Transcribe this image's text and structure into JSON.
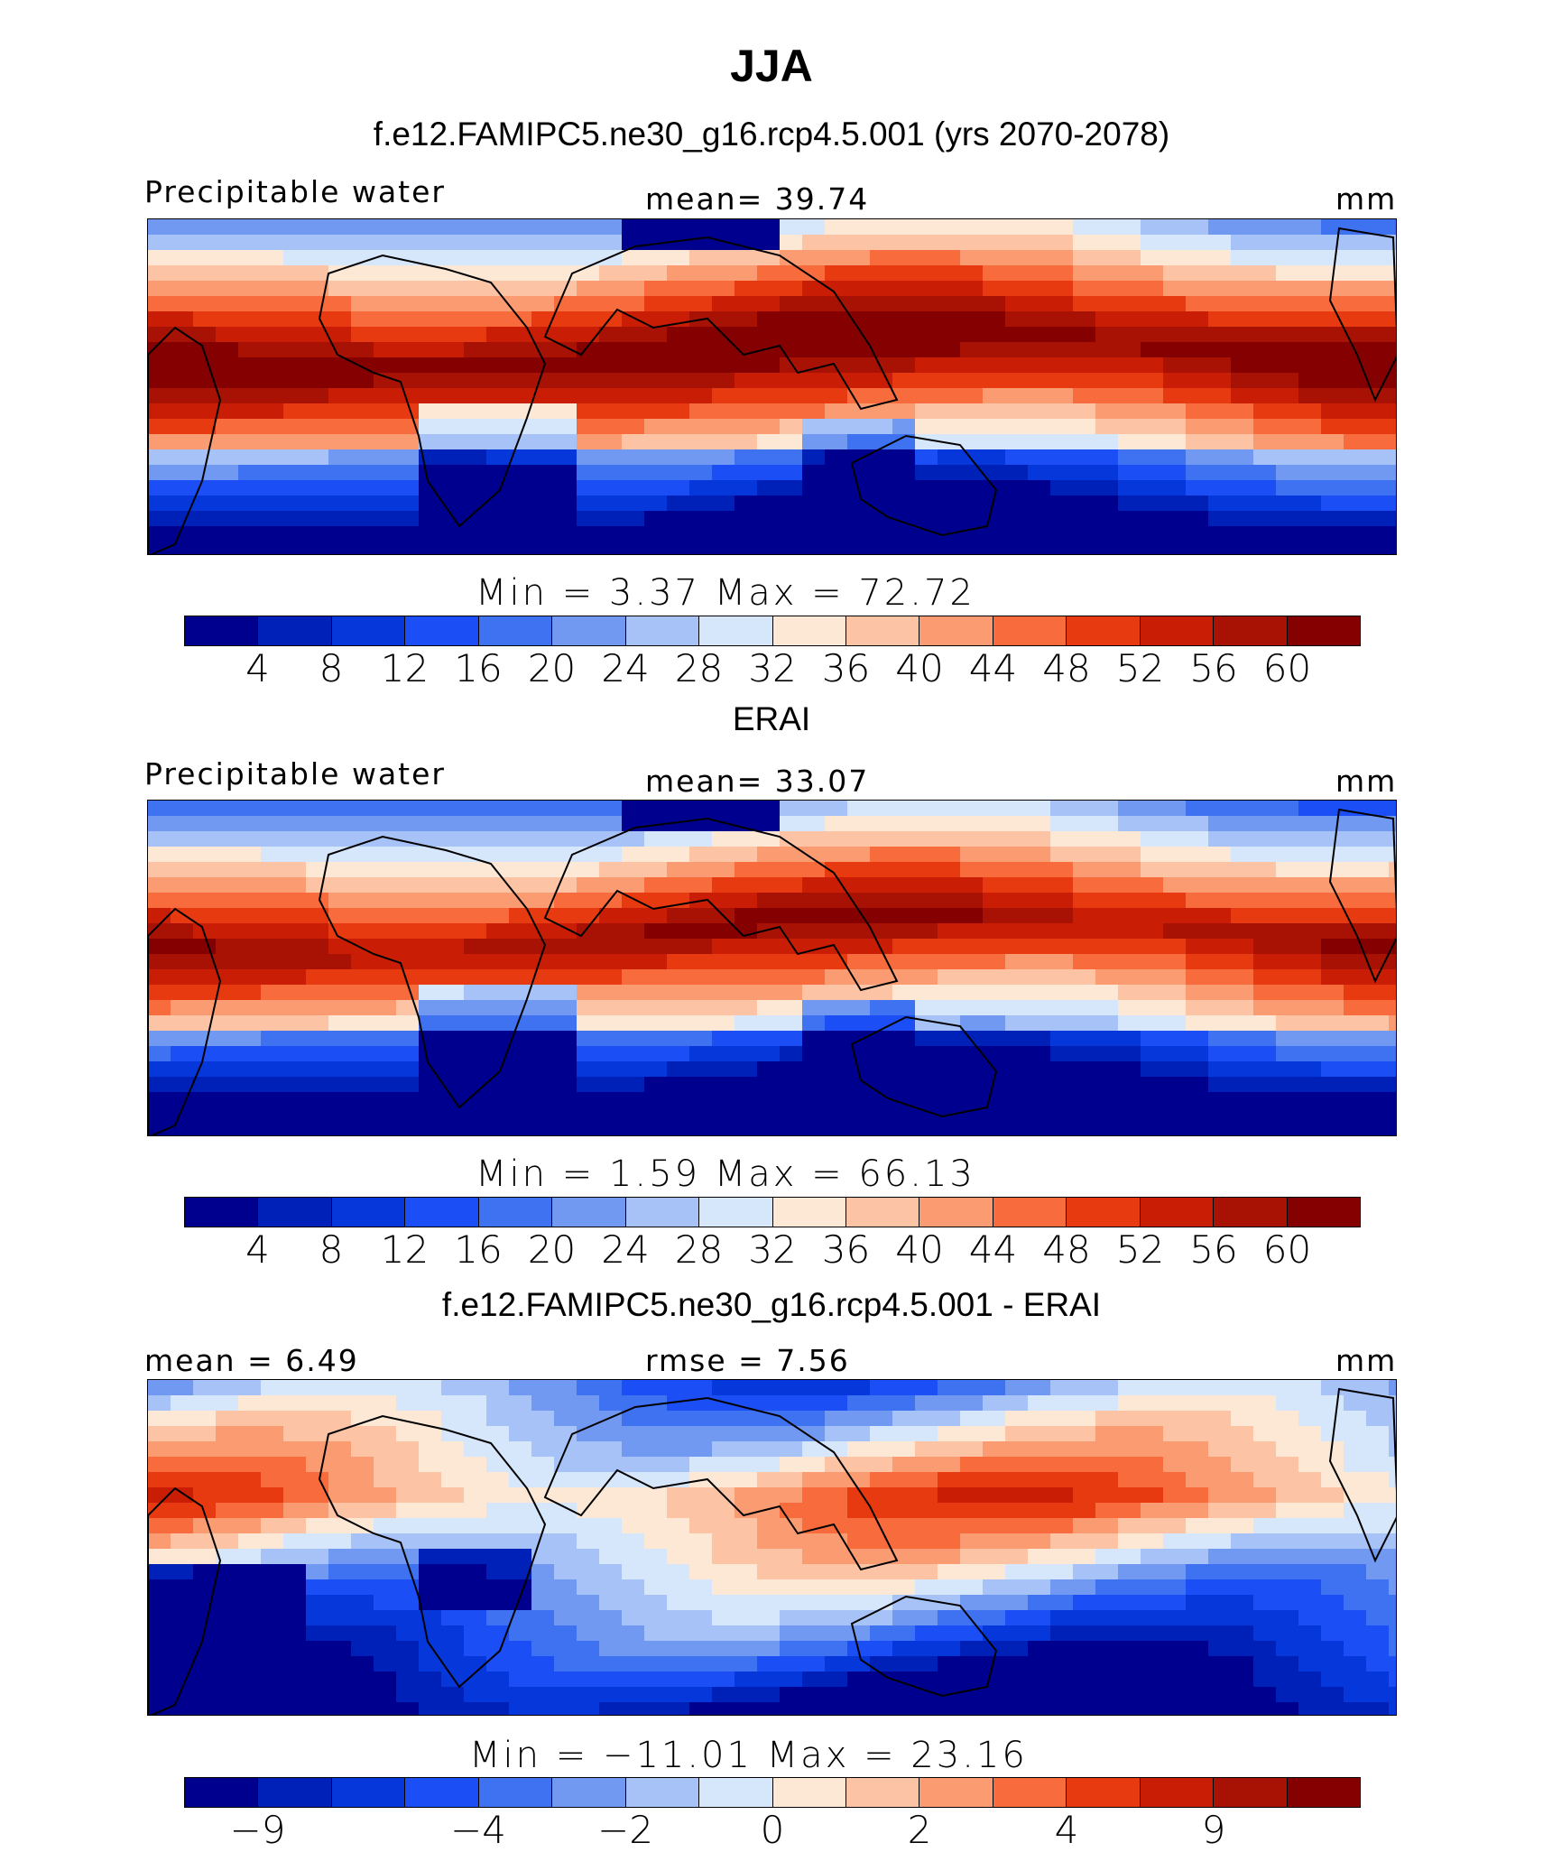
{
  "header": {
    "title": "JJA"
  },
  "panels": [
    {
      "title": "f.e12.FAMIPC5.ne30_g16.rcp4.5.001 (yrs 2070-2078)",
      "left_label": "Precipitable water",
      "center_label": "mean=   39.74",
      "units": "mm",
      "minmax": "Min =    3.37  Max =   72.72",
      "field": "full"
    },
    {
      "title": "ERAI",
      "left_label": "Precipitable water",
      "center_label": "mean=   33.07",
      "units": "mm",
      "minmax": "Min =    1.59  Max =   66.13",
      "field": "full"
    },
    {
      "title": "f.e12.FAMIPC5.ne30_g16.rcp4.5.001 - ERAI",
      "left_label": "mean =    6.49",
      "center_label": "rmse =    7.56",
      "units": "mm",
      "minmax": "Min = −11.01  Max =   23.16",
      "field": "diff"
    }
  ],
  "colorbar": {
    "colors": [
      "#00008f",
      "#0021b8",
      "#0537db",
      "#1c4ef5",
      "#3f72f0",
      "#7199f2",
      "#a6c2f7",
      "#d6e6fb",
      "#fde8d6",
      "#fcc3a5",
      "#fa9b72",
      "#f76b3d",
      "#e83a10",
      "#c91e05",
      "#a81205",
      "#850000"
    ],
    "ticks_full": [
      "4",
      "8",
      "12",
      "16",
      "20",
      "24",
      "28",
      "32",
      "36",
      "40",
      "44",
      "48",
      "52",
      "56",
      "60"
    ],
    "ticks_diff": [
      "−9",
      "−4",
      "−2",
      "0",
      "2",
      "4",
      "9"
    ]
  }
}
